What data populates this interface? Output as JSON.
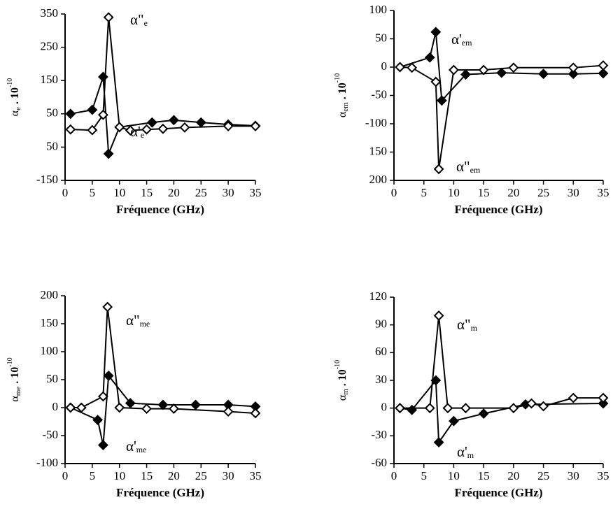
{
  "chart_data": [
    {
      "type": "line",
      "xlabel": "Fréquence (GHz)",
      "ylabel": {
        "symbol": "α",
        "sub": "e",
        "factor": ". 10",
        "exp": "-10"
      },
      "xlim": [
        0,
        35
      ],
      "xticks": [
        0,
        5,
        10,
        15,
        20,
        25,
        30,
        35
      ],
      "ylim": [
        -150,
        350
      ],
      "yticks": [
        350,
        250,
        150,
        50,
        {
          "value": -50,
          "label": "50"
        },
        -150
      ],
      "series": [
        {
          "name": "α'e",
          "marker": "filled",
          "color": "#000000",
          "x": [
            1,
            5,
            7,
            8,
            10,
            16,
            20,
            25,
            30,
            35
          ],
          "values": [
            50,
            62,
            161,
            -70,
            10,
            24,
            31,
            24,
            18,
            14
          ]
        },
        {
          "name": "α\"e",
          "marker": "open",
          "color": "#000000",
          "x": [
            1,
            5,
            7,
            8,
            10,
            12,
            15,
            18,
            22,
            30,
            35
          ],
          "values": [
            3,
            1,
            47,
            340,
            10,
            0,
            3,
            5,
            9,
            13,
            13
          ]
        }
      ],
      "annotations": [
        {
          "text": "α\"",
          "sub": "e"
        },
        {
          "text": "α'",
          "sub": "e"
        }
      ]
    },
    {
      "type": "line",
      "xlabel": "Fréquence  (GHz)",
      "ylabel": {
        "symbol": "α",
        "sub": "em",
        "factor": ". 10",
        "exp": "-10"
      },
      "xlim": [
        0,
        35
      ],
      "xticks": [
        0,
        5,
        10,
        15,
        20,
        25,
        30,
        35
      ],
      "ylim": [
        -200,
        100
      ],
      "yticks": [
        100,
        50,
        0,
        -50,
        -100,
        {
          "value": -150,
          "label": "150"
        },
        {
          "value": -200,
          "label": "200"
        }
      ],
      "series": [
        {
          "name": "α'em",
          "marker": "filled",
          "color": "#000000",
          "x": [
            1,
            6,
            7,
            8,
            12,
            18,
            25,
            30,
            35
          ],
          "values": [
            0,
            17,
            62,
            -59,
            -13,
            -10,
            -12,
            -12,
            -11
          ]
        },
        {
          "name": "α\"em",
          "marker": "open",
          "color": "#000000",
          "x": [
            1,
            3,
            7,
            7.5,
            10,
            15,
            20,
            30,
            35
          ],
          "values": [
            0,
            -1,
            -26,
            -180,
            -5,
            -5,
            -1,
            -1,
            3
          ]
        }
      ],
      "annotations": [
        {
          "text": "α'",
          "sub": "em"
        },
        {
          "text": "α\"",
          "sub": "em"
        }
      ]
    },
    {
      "type": "line",
      "xlabel": "Fréquence (GHz)",
      "ylabel": {
        "symbol": "α",
        "sub": "me",
        "factor": ". 10",
        "exp": "-10"
      },
      "xlim": [
        0,
        35
      ],
      "xticks": [
        0,
        5,
        10,
        15,
        20,
        25,
        30,
        35
      ],
      "ylim": [
        -100,
        200
      ],
      "yticks": [
        200,
        150,
        100,
        50,
        0,
        -50,
        -100
      ],
      "series": [
        {
          "name": "α'me",
          "marker": "filled",
          "color": "#000000",
          "x": [
            1,
            6,
            7,
            8,
            12,
            18,
            24,
            30,
            35
          ],
          "values": [
            0,
            -22,
            -67,
            57,
            8,
            5,
            5,
            5,
            2
          ]
        },
        {
          "name": "α\"me",
          "marker": "open",
          "color": "#000000",
          "x": [
            1,
            3,
            7,
            7.8,
            10,
            15,
            20,
            30,
            35
          ],
          "values": [
            0,
            0,
            20,
            180,
            0,
            -2,
            -2,
            -7,
            -10
          ]
        }
      ],
      "annotations": [
        {
          "text": "α\"",
          "sub": "me"
        },
        {
          "text": "α'",
          "sub": "me"
        }
      ]
    },
    {
      "type": "line",
      "xlabel": "Fréquence (GHz)",
      "ylabel": {
        "symbol": "α",
        "sub": "m",
        "factor": ". 10",
        "exp": "-10"
      },
      "xlim": [
        0,
        35
      ],
      "xticks": [
        0,
        5,
        10,
        15,
        20,
        25,
        30,
        35
      ],
      "ylim": [
        -60,
        120
      ],
      "yticks": [
        120,
        90,
        60,
        30,
        0,
        -30,
        -60
      ],
      "series": [
        {
          "name": "α'm",
          "marker": "filled",
          "color": "#000000",
          "x": [
            1,
            3,
            7,
            7.5,
            10,
            15,
            22,
            35
          ],
          "values": [
            0,
            -2,
            30,
            -37,
            -14,
            -6,
            4,
            5
          ]
        },
        {
          "name": "α\"m",
          "marker": "open",
          "color": "#000000",
          "x": [
            1,
            6,
            7.5,
            9,
            12,
            20,
            23,
            25,
            30,
            35
          ],
          "values": [
            0,
            0,
            100,
            0,
            0,
            0,
            5,
            2,
            11,
            11
          ]
        }
      ],
      "annotations": [
        {
          "text": "α\"",
          "sub": "m"
        },
        {
          "text": "α'",
          "sub": "m"
        }
      ]
    }
  ]
}
